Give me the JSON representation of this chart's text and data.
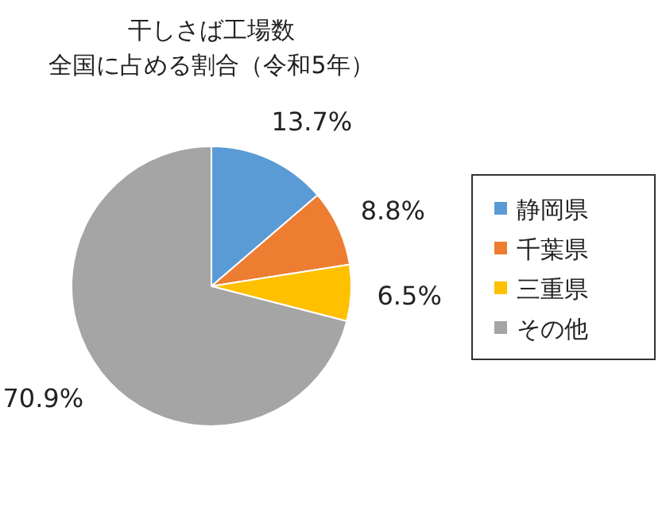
{
  "chart_data": {
    "type": "pie",
    "title": "干しさば工場数",
    "subtitle": "全国に占める割合（令和5年）",
    "categories": [
      "静岡県",
      "千葉県",
      "三重県",
      "その他"
    ],
    "values": [
      13.7,
      8.8,
      6.5,
      70.9
    ],
    "value_labels": [
      "13.7%",
      "8.8%",
      "6.5%",
      "70.9%"
    ],
    "colors": [
      "#5b9bd5",
      "#ed7d31",
      "#ffc000",
      "#a5a5a5"
    ],
    "legend": "right"
  }
}
